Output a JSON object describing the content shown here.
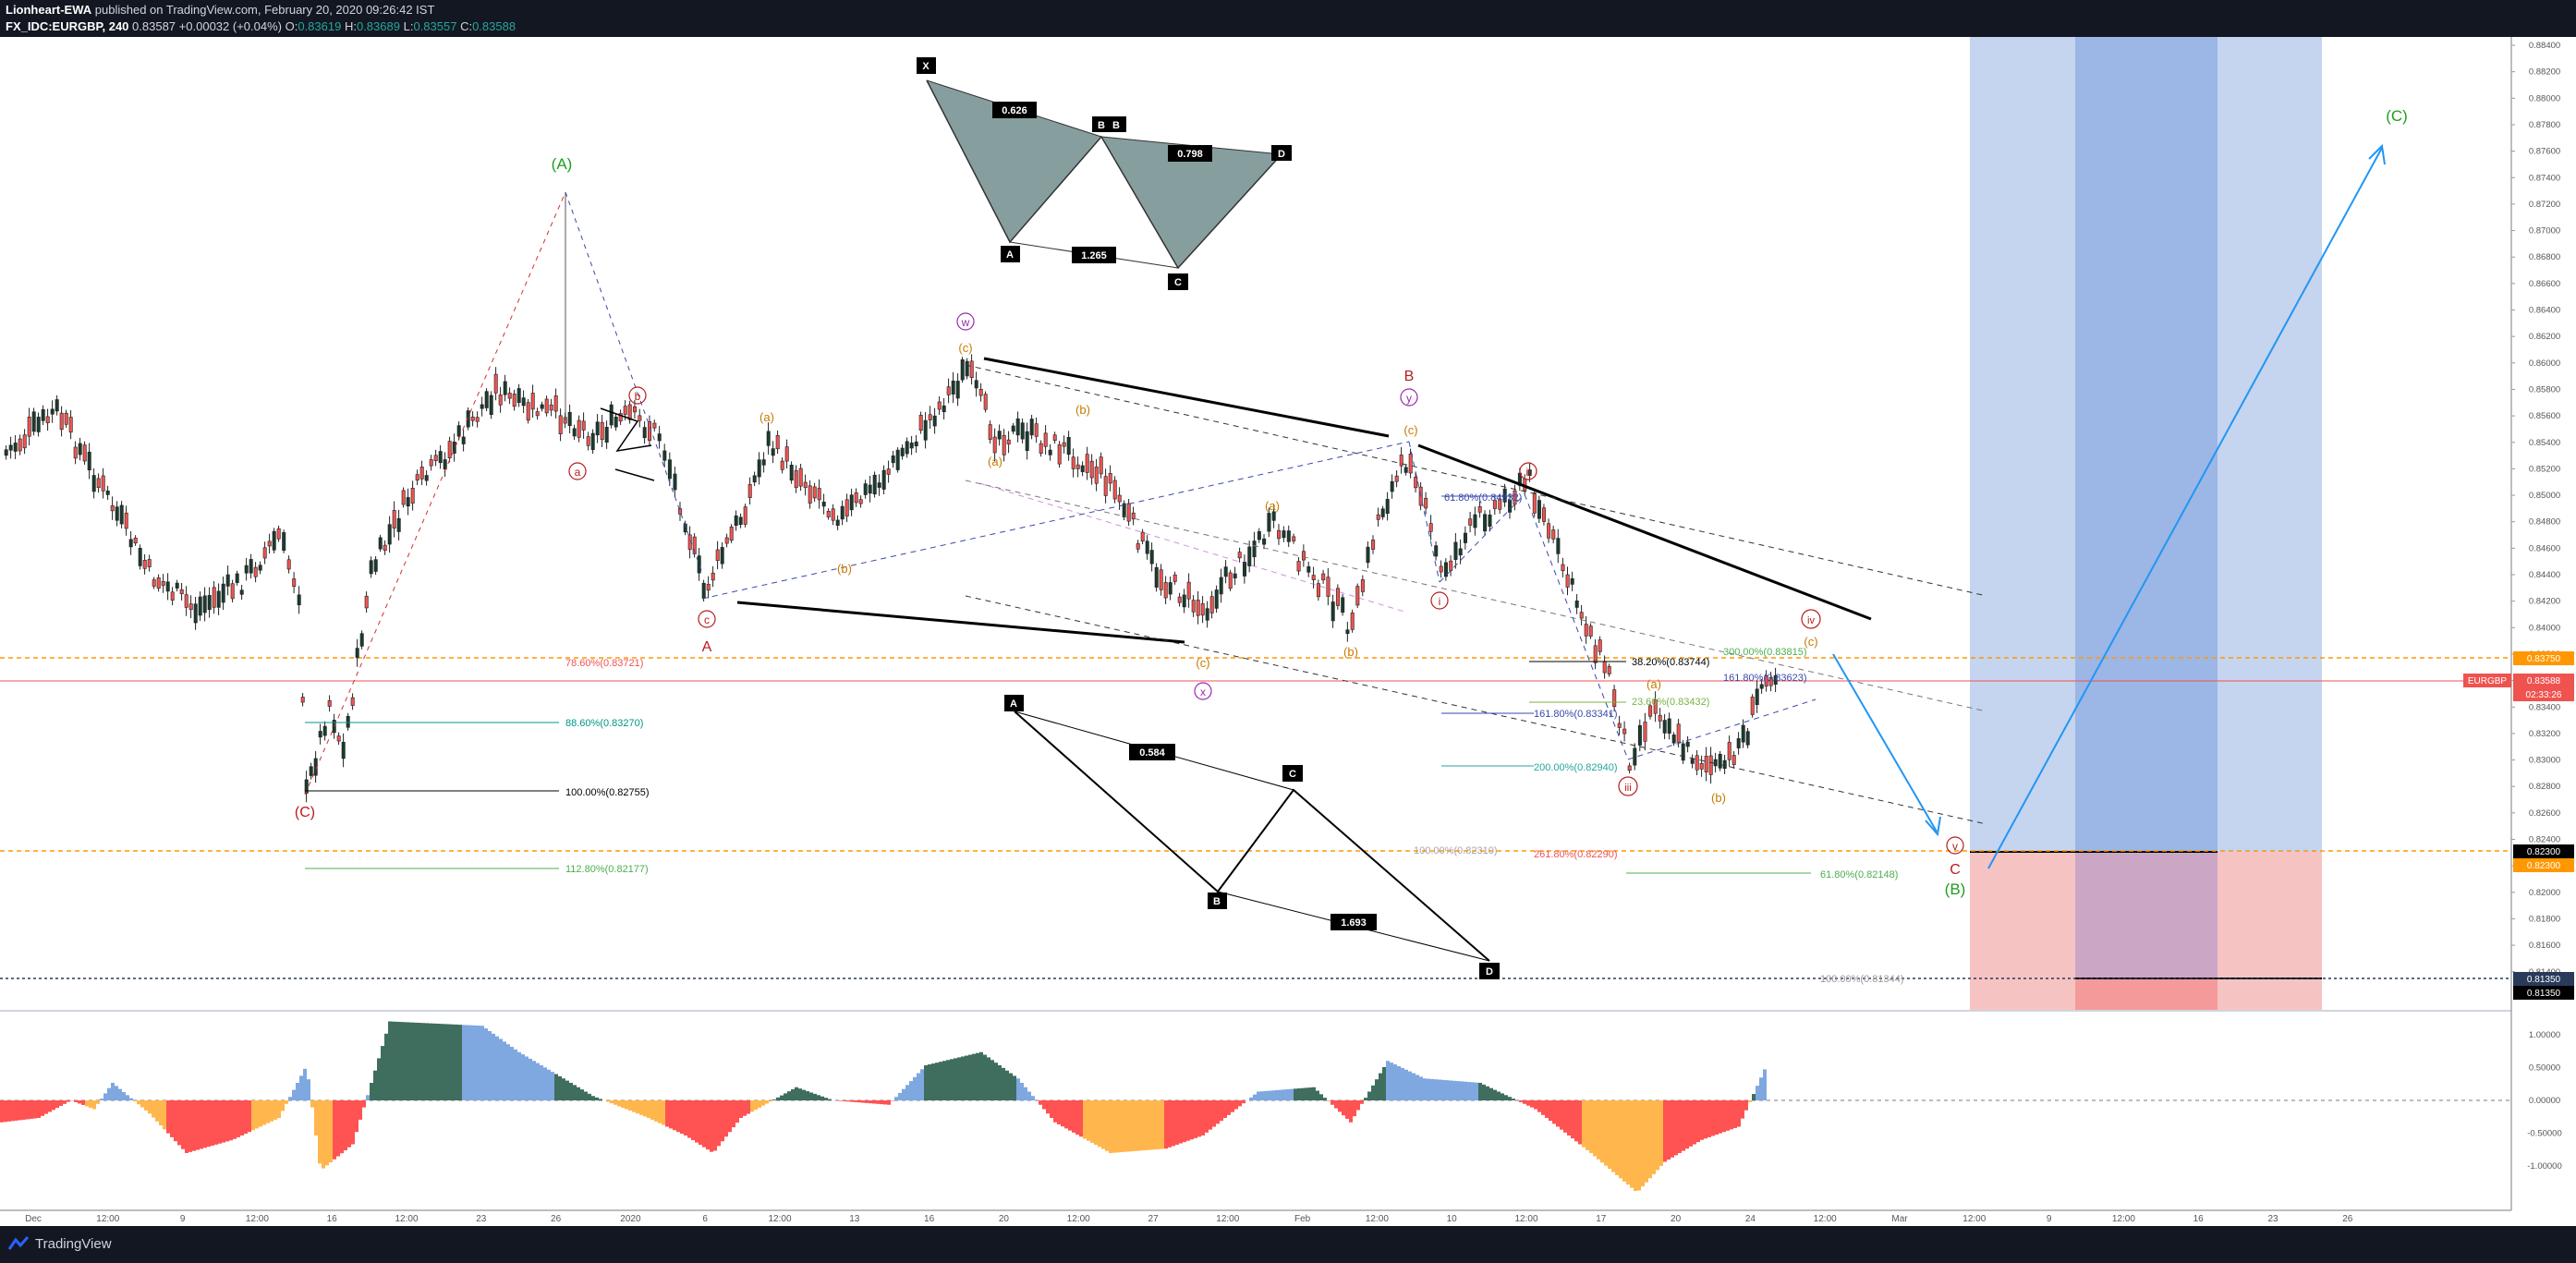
{
  "header": {
    "author": "Lionheart-EWA",
    "published": " published on TradingView.com, February 20, 2020 09:26:42 IST",
    "symbol": "FX_IDC:EURGBP, 240",
    "last": "0.83587",
    "change": "+0.00032 (+0.04%)",
    "o_label": "O:",
    "o": "0.83619",
    "h_label": "H:",
    "h": "0.83689",
    "l_label": "L:",
    "l": "0.83557",
    "c_label": "C:",
    "c": "0.83588"
  },
  "footer": {
    "brand": "TradingView"
  },
  "price_axis": {
    "ticks": [
      "0.88400",
      "0.88200",
      "0.88000",
      "0.87800",
      "0.87600",
      "0.87400",
      "0.87200",
      "0.87000",
      "0.86800",
      "0.86600",
      "0.86400",
      "0.86200",
      "0.86000",
      "0.85800",
      "0.85600",
      "0.85400",
      "0.85200",
      "0.85000",
      "0.84800",
      "0.84600",
      "0.84400",
      "0.84200",
      "0.84000",
      "0.83800",
      "0.83600",
      "0.83400",
      "0.83200",
      "0.83000",
      "0.82800",
      "0.82600",
      "0.82400",
      "0.82200",
      "0.82000",
      "0.81800",
      "0.81600",
      "0.81400"
    ],
    "labels": {
      "level_orange": "0.83750",
      "symbol_tag": "EURGBP",
      "current": "0.83588",
      "countdown": "02:33:26",
      "target_black": "0.82300",
      "target_orange": "0.82300",
      "stop1": "0.81350",
      "stop2": "0.81350"
    }
  },
  "oscillator_axis": {
    "ticks": [
      "1.00000",
      "0.50000",
      "0.00000",
      "-0.50000",
      "-1.00000"
    ]
  },
  "time_axis": {
    "ticks": [
      "Dec",
      "12:00",
      "9",
      "12:00",
      "16",
      "12:00",
      "23",
      "26",
      "2020",
      "6",
      "12:00",
      "13",
      "16",
      "20",
      "12:00",
      "27",
      "12:00",
      "Feb",
      "12:00",
      "10",
      "12:00",
      "17",
      "20",
      "24",
      "12:00",
      "Mar",
      "12:00",
      "9",
      "12:00",
      "16",
      "23",
      "26"
    ]
  },
  "wave_labels": {
    "A_green": "(A)",
    "B_green": "(B)",
    "C_green": "(C)",
    "C_red": "(C)",
    "a_red": "a",
    "b_red": "b",
    "c_red": "c",
    "A_red": "A",
    "B_red": "B",
    "C_red2": "C",
    "w": "w",
    "x": "x",
    "y": "y",
    "i": "i",
    "ii": "ii",
    "iii": "iii",
    "iv": "iv",
    "v": "v",
    "a_or1": "(a)",
    "b_or1": "(b)",
    "c_or1": "(c)",
    "a_or2": "(a)",
    "b_or2": "(b)",
    "c_or2": "(c)",
    "a_or3": "(a)",
    "b_or3": "(b)",
    "c_or3": "(c)",
    "a_or4": "(a)",
    "b_or4": "(b)",
    "c_or4": "(c)"
  },
  "harmonic_top": {
    "X": "X",
    "A": "A",
    "B": "B",
    "C": "C",
    "D": "D",
    "r1": "0.626",
    "r2": "0.798",
    "r3": "1.265",
    "r4": "B"
  },
  "harmonic_bottom": {
    "A": "A",
    "B": "B",
    "C": "C",
    "D": "D",
    "r1": "0.584",
    "r2": "1.693"
  },
  "fib_labels": {
    "f786": "78.60%(0.83721)",
    "f886": "88.60%(0.83270)",
    "f100": "100.00%(0.82755)",
    "f1128": "112.80%(0.82177)",
    "f618_top": "61.80%(0.84932)",
    "f382": "38.20%(0.83744)",
    "f300": "300.00%(0.83815)",
    "f1618a": "161.80%(0.83623)",
    "f236": "23.60%(0.83432)",
    "f1618b": "161.80%(0.83341)",
    "f200": "200.00%(0.82940)",
    "f100b": "100.00%(0.82310)",
    "f2618": "261.80%(0.82290)",
    "f618b": "61.80%(0.82148)",
    "f100c": "100.00%(0.81344)"
  },
  "colors": {
    "up": "#26a69a",
    "down": "#ef5350",
    "green_wave": "#1e9e1e",
    "red_wave": "#b71c1c",
    "orange_wave": "#c77b00",
    "purple_wave": "#9c27b0",
    "blue_zone": "#9cb6e6",
    "red_zone": "#f4a9a9"
  }
}
